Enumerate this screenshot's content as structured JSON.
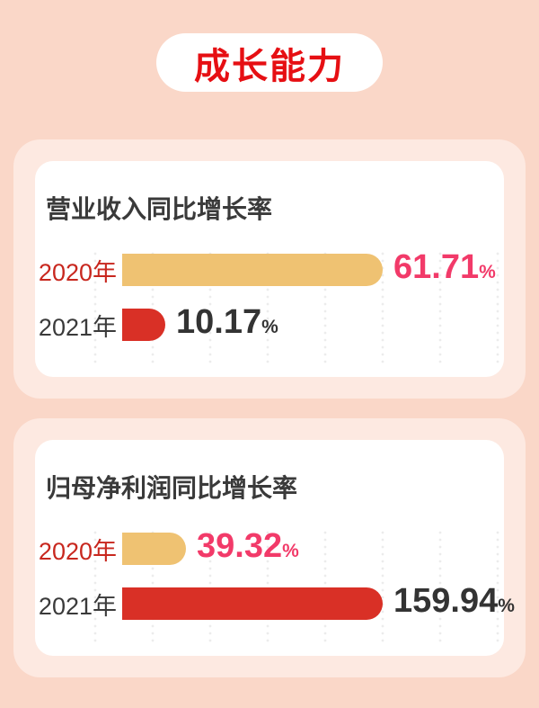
{
  "header": {
    "title": "成长能力"
  },
  "colors": {
    "page_bg": "#FAD7C8",
    "card_bg": "#FDE9E1",
    "panel_bg": "#FFFFFF",
    "header_text": "#E60F13",
    "gold_bar": "#EFC272",
    "red_bar": "#D93026",
    "pink_value": "#F23A69",
    "red_label": "#C8271E",
    "dark_text": "#3A3A3A",
    "value_dark": "#333333",
    "gridline": "#ECECEC"
  },
  "chart_data": [
    {
      "type": "bar",
      "orientation": "horizontal",
      "title": "营业收入同比增长率",
      "categories": [
        "2020年",
        "2021年"
      ],
      "values": [
        61.71,
        10.17
      ],
      "unit": "%",
      "xlim": [
        0,
        61.71
      ],
      "grid": "dotted-vertical",
      "bar_colors": [
        "#EFC272",
        "#D93026"
      ],
      "value_label_colors": [
        "#F23A69",
        "#333333"
      ]
    },
    {
      "type": "bar",
      "orientation": "horizontal",
      "title": "归母净利润同比增长率",
      "categories": [
        "2020年",
        "2021年"
      ],
      "values": [
        39.32,
        159.94
      ],
      "unit": "%",
      "xlim": [
        0,
        159.94
      ],
      "grid": "dotted-vertical",
      "bar_colors": [
        "#EFC272",
        "#D93026"
      ],
      "value_label_colors": [
        "#F23A69",
        "#333333"
      ]
    }
  ]
}
